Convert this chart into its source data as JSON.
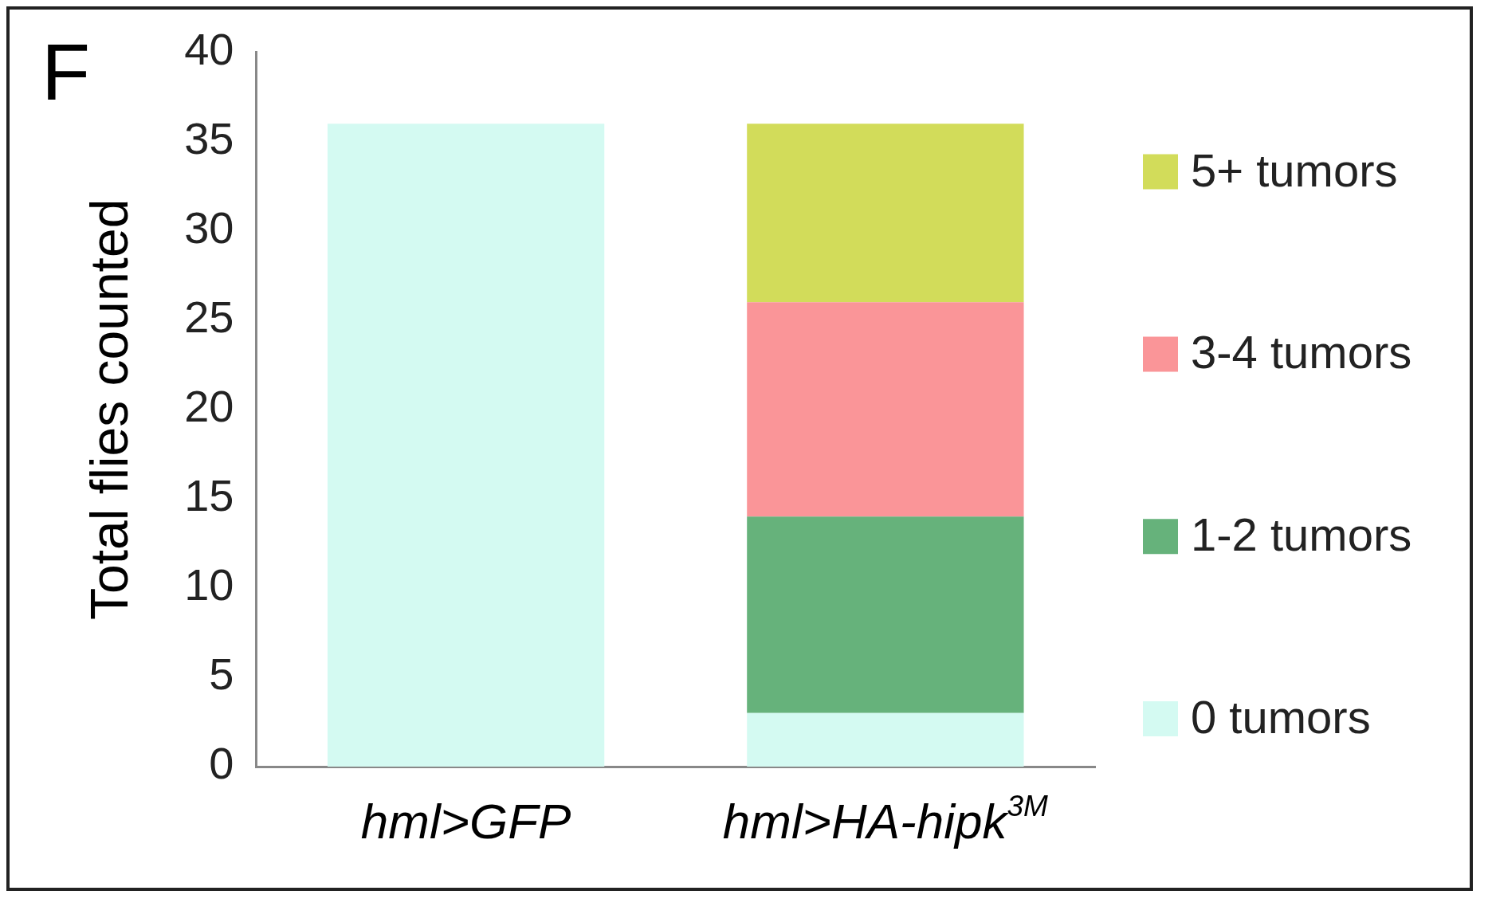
{
  "chart_data": {
    "type": "bar",
    "stacked": true,
    "ylabel": "Total flies counted",
    "annotations": [
      "F"
    ],
    "categories": [
      "hml>GFP",
      "hml>HA-hipk$^{3M}$"
    ],
    "series": [
      {
        "name": "0 tumors",
        "color": "#d4faf2",
        "values": [
          36,
          3
        ]
      },
      {
        "name": "1-2 tumors",
        "color": "#66b27b",
        "values": [
          0,
          11
        ]
      },
      {
        "name": "3-4 tumors",
        "color": "#fa9598",
        "values": [
          0,
          12
        ]
      },
      {
        "name": "5+ tumors",
        "color": "#d2dc5a",
        "values": [
          0,
          10
        ]
      }
    ],
    "ylim": [
      0,
      40
    ],
    "yticks": [
      0,
      5,
      10,
      15,
      20,
      25,
      30,
      35,
      40
    ],
    "grid": false,
    "legend": "right"
  }
}
